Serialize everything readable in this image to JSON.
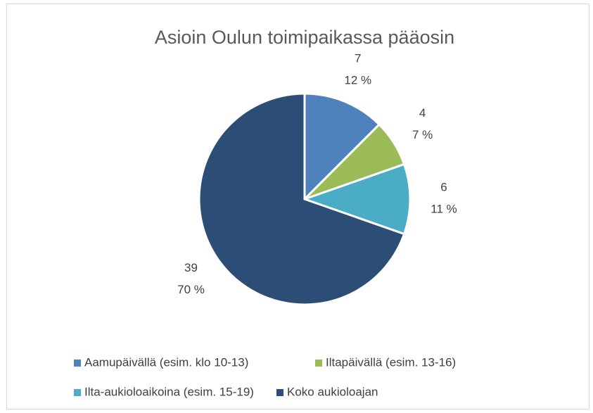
{
  "chart_data": {
    "type": "pie",
    "title": "Asioin Oulun toimipaikassa pääosin",
    "categories": [
      "Aamupäivällä (esim. klo 10-13)",
      "Iltapäivällä (esim. 13-16)",
      "Ilta-aukioloaikoina (esim. 15-19)",
      "Koko aukioloajan"
    ],
    "values": [
      7,
      4,
      6,
      39
    ],
    "percent_labels": [
      "12 %",
      "7 %",
      "11 %",
      "70 %"
    ],
    "colors": [
      "#4f81bd",
      "#9bbb59",
      "#4bacc6",
      "#2c4d75"
    ]
  }
}
